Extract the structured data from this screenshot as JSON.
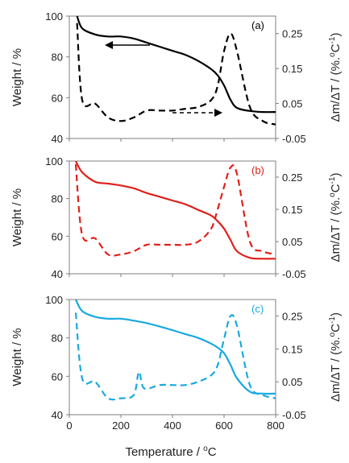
{
  "x_axis": {
    "label_main": "Temperature  / ",
    "label_deg": "o",
    "label_unit": "C",
    "ticks": [
      "0",
      "200",
      "400",
      "600",
      "800"
    ]
  },
  "left_axis": {
    "label": "Weight / %",
    "ticks": [
      "40",
      "60",
      "80",
      "100"
    ]
  },
  "right_axis": {
    "label_main": "Δm/ΔT / (%.",
    "label_deg": "o",
    "label_unit": "C",
    "label_exp": "-1",
    "label_close": ")",
    "ticks": [
      "-0.05",
      "0.05",
      "0.15",
      "0.25"
    ]
  },
  "chart_data": [
    {
      "type": "line",
      "panel_label": "(a)",
      "color": "#000000",
      "xlim": [
        0,
        800
      ],
      "ylim": [
        40,
        100
      ],
      "y2lim": [
        -0.05,
        0.3
      ],
      "x": [
        30,
        50,
        100,
        150,
        200,
        250,
        300,
        350,
        400,
        450,
        500,
        550,
        575,
        600,
        625,
        650,
        700,
        750,
        800
      ],
      "weight": [
        100,
        94,
        91,
        90,
        90,
        89,
        87,
        85,
        83,
        81,
        78,
        74,
        71,
        66,
        59,
        55,
        53.5,
        53,
        53
      ],
      "dtg": [
        0.28,
        0.06,
        0.05,
        0.01,
        0.0,
        0.01,
        0.03,
        0.03,
        0.03,
        0.035,
        0.04,
        0.06,
        0.1,
        0.2,
        0.25,
        0.2,
        0.04,
        0.0,
        -0.01
      ],
      "arrows": [
        "left",
        "right"
      ]
    },
    {
      "type": "line",
      "panel_label": "(b)",
      "color": "#e0201b",
      "xlim": [
        0,
        800
      ],
      "ylim": [
        40,
        100
      ],
      "y2lim": [
        -0.05,
        0.3
      ],
      "x": [
        25,
        50,
        100,
        150,
        200,
        250,
        300,
        350,
        400,
        450,
        500,
        550,
        575,
        600,
        625,
        650,
        700,
        750,
        800
      ],
      "weight": [
        100,
        94,
        89,
        88,
        87,
        85.5,
        83,
        81,
        79,
        77,
        74,
        71,
        68,
        64,
        58,
        52,
        48.5,
        48,
        48
      ],
      "dtg": [
        0.29,
        0.07,
        0.06,
        0.01,
        0.01,
        0.02,
        0.04,
        0.04,
        0.04,
        0.04,
        0.05,
        0.09,
        0.15,
        0.22,
        0.28,
        0.26,
        0.05,
        0.02,
        0.01
      ],
      "arrows": []
    },
    {
      "type": "line",
      "panel_label": "(c)",
      "color": "#19a9df",
      "xlim": [
        0,
        800
      ],
      "ylim": [
        40,
        100
      ],
      "y2lim": [
        -0.05,
        0.3
      ],
      "x": [
        25,
        50,
        100,
        150,
        200,
        250,
        270,
        290,
        350,
        400,
        450,
        500,
        550,
        575,
        600,
        625,
        650,
        700,
        750,
        800
      ],
      "weight": [
        100,
        94,
        91,
        90,
        90,
        89,
        88.5,
        88,
        86,
        84,
        82,
        80,
        77,
        75,
        72,
        66,
        59,
        52,
        51,
        51
      ],
      "dtg": [
        0.26,
        0.06,
        0.05,
        0.0,
        0.0,
        0.01,
        0.08,
        0.03,
        0.04,
        0.04,
        0.04,
        0.05,
        0.07,
        0.1,
        0.18,
        0.25,
        0.22,
        0.04,
        0.01,
        0.0
      ],
      "arrows": []
    }
  ]
}
